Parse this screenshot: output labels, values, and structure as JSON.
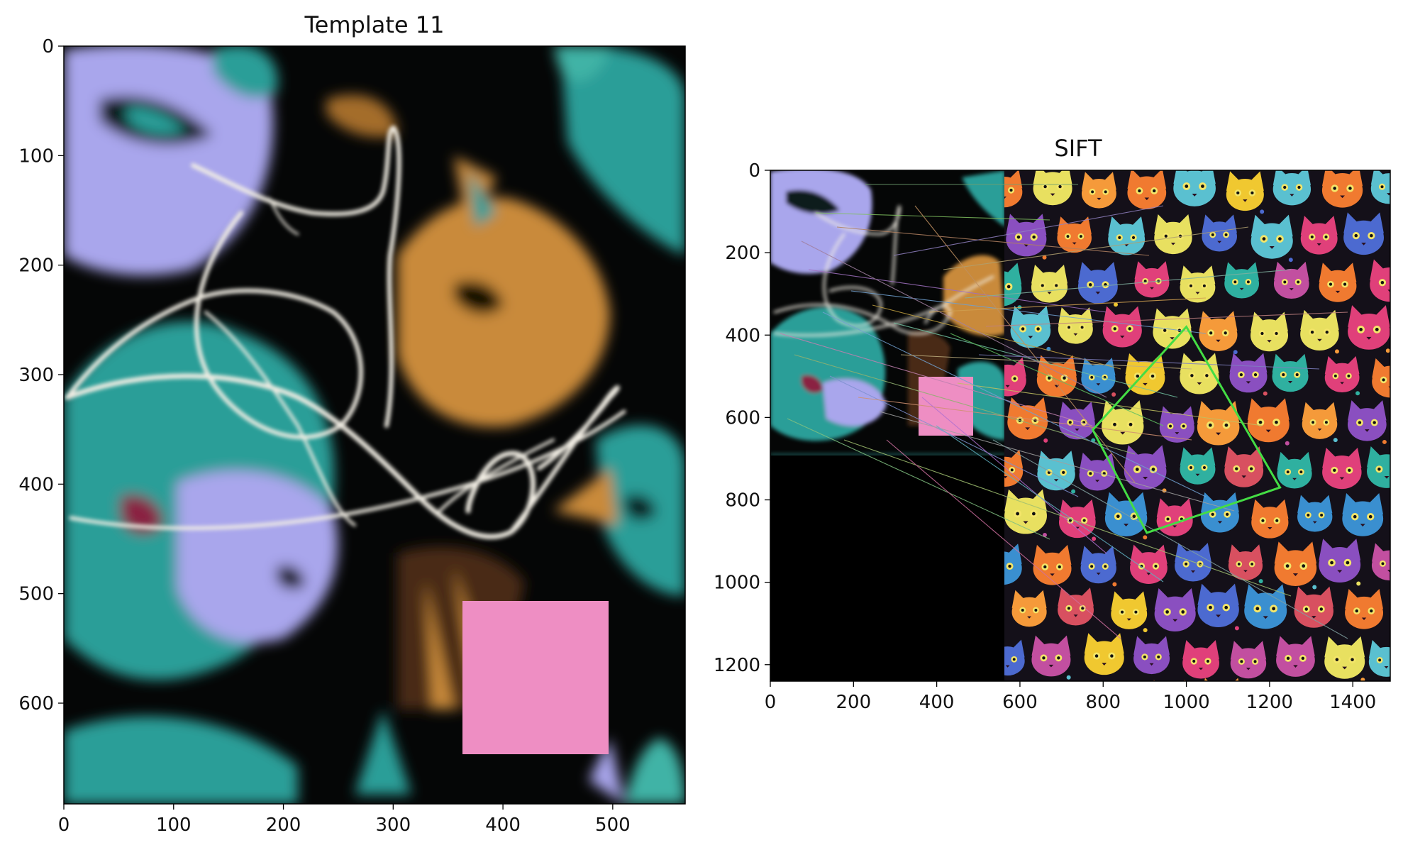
{
  "chart_data": [
    {
      "type": "image",
      "title": "Template 11",
      "xlim": [
        0,
        566
      ],
      "ylim": [
        0,
        692
      ],
      "y_inverted": true,
      "xticks": [
        0,
        100,
        200,
        300,
        400,
        500
      ],
      "yticks": [
        0,
        100,
        200,
        300,
        400,
        500,
        600
      ],
      "xtick_labels": [
        "0",
        "100",
        "200",
        "300",
        "400",
        "500"
      ],
      "ytick_labels": [
        "0",
        "100",
        "200",
        "300",
        "400",
        "500",
        "600"
      ],
      "grid": false,
      "image_content": "cropped cat-illustration template with white scribble strokes and a pink square occlusion",
      "pink_rect": {
        "x": [
          362,
          496
        ],
        "y": [
          505,
          645
        ],
        "color": "#ee8ec3"
      },
      "colors": {
        "background": "#050606",
        "cyan": "#2c9e98",
        "lavender": "#a9a6ec",
        "orange": "#c98a3a",
        "stroke": "#f2eee4"
      }
    },
    {
      "type": "image",
      "title": "SIFT",
      "xlim": [
        0,
        1490
      ],
      "ylim": [
        0,
        1240
      ],
      "y_inverted": true,
      "xticks": [
        0,
        200,
        400,
        600,
        800,
        1000,
        1200,
        1400
      ],
      "yticks": [
        0,
        200,
        400,
        600,
        800,
        1000,
        1200
      ],
      "xtick_labels": [
        "0",
        "200",
        "400",
        "600",
        "800",
        "1000",
        "1200",
        "1400"
      ],
      "ytick_labels": [
        "0",
        "200",
        "400",
        "600",
        "800",
        "1000",
        "1200"
      ],
      "grid": false,
      "image_content": "side-by-side composite: template (left) and scene of cartoon cats (right) with SIFT feature match lines and detected homography quadrilateral",
      "template_extent": {
        "x": [
          0,
          566
        ],
        "y": [
          0,
          692
        ]
      },
      "scene_extent": {
        "x": [
          566,
          1490
        ],
        "y": [
          0,
          1240
        ]
      },
      "pink_rect": {
        "x": [
          362,
          496
        ],
        "y": [
          505,
          645
        ],
        "color": "#ee8ec3"
      },
      "homography_polygon": {
        "color": "#44dd44",
        "points": [
          [
            1000,
            380
          ],
          [
            1225,
            770
          ],
          [
            905,
            880
          ],
          [
            775,
            630
          ]
        ]
      },
      "colors": {
        "scene_background": "#141019",
        "match_lines": "mixed"
      }
    }
  ]
}
